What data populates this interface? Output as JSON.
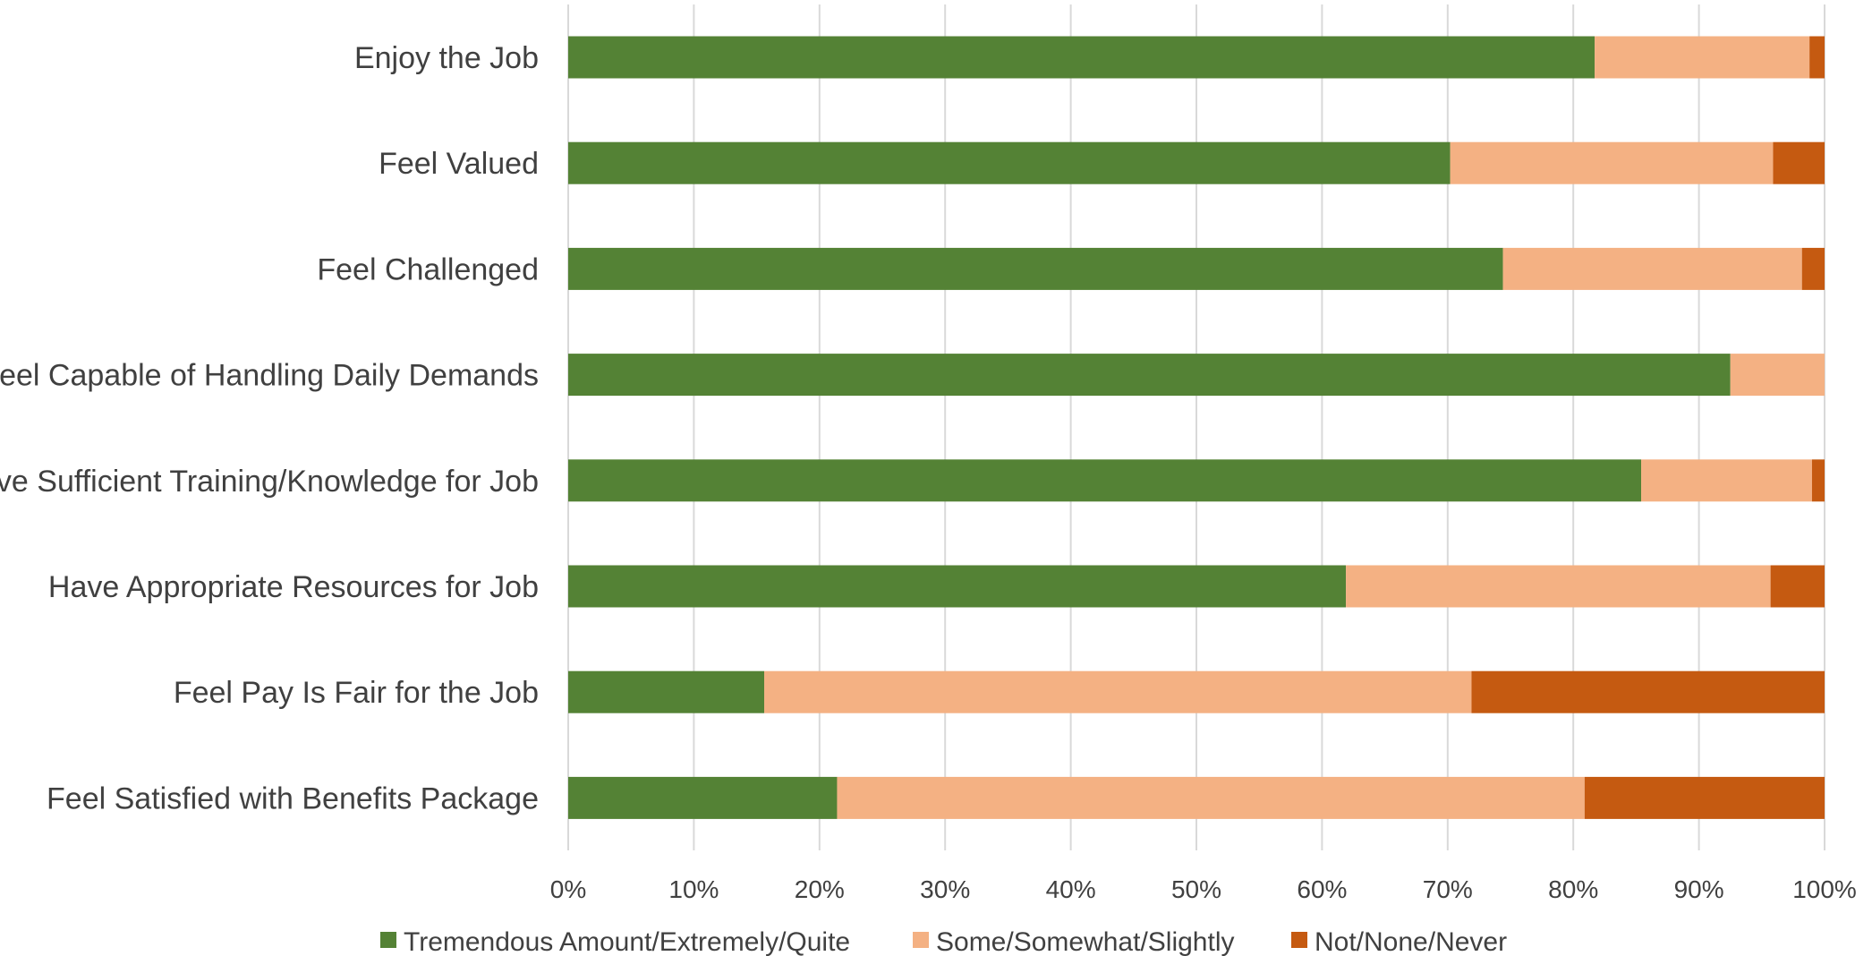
{
  "chart_data": {
    "type": "bar",
    "orientation": "horizontal",
    "stacked": true,
    "title": "",
    "xlabel": "",
    "ylabel": "",
    "xlim": [
      0,
      100
    ],
    "grid": true,
    "legend_position": "bottom",
    "x_ticks": [
      "0%",
      "10%",
      "20%",
      "30%",
      "40%",
      "50%",
      "60%",
      "70%",
      "80%",
      "90%",
      "100%"
    ],
    "categories": [
      "Enjoy the Job",
      "Feel Valued",
      "Feel Challenged",
      "Feel Capable of Handling Daily Demands",
      "Have Sufficient Training/Knowledge for Job",
      "Have Appropriate Resources for Job",
      "Feel Pay Is Fair for the Job",
      "Feel Satisfied with Benefits Package"
    ],
    "series": [
      {
        "name": "Tremendous Amount/Extremely/Quite",
        "color": "#548235",
        "values": [
          81.7,
          70.2,
          74.4,
          92.5,
          85.4,
          61.9,
          15.6,
          21.4
        ]
      },
      {
        "name": "Some/Somewhat/Slightly",
        "color": "#F4B183",
        "values": [
          17.1,
          25.7,
          23.8,
          7.5,
          13.6,
          33.8,
          56.3,
          59.5
        ]
      },
      {
        "name": "Not/None/Never",
        "color": "#C55A11",
        "values": [
          1.2,
          4.1,
          1.8,
          0.0,
          1.0,
          4.3,
          28.1,
          19.1
        ]
      }
    ]
  }
}
